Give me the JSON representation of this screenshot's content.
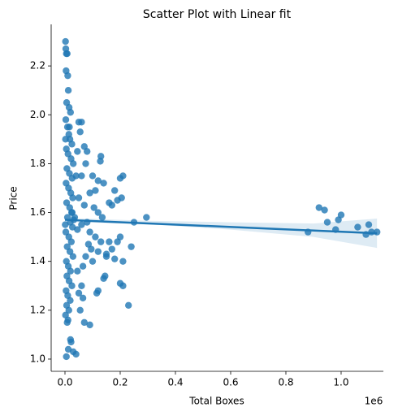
{
  "chart_data": {
    "type": "scatter",
    "title": "Scatter Plot with Linear fit",
    "xlabel": "Total Boxes",
    "ylabel": "Price",
    "x_offset_label": "1e6",
    "xlim": [
      -50000,
      1153000
    ],
    "ylim": [
      0.95,
      2.37
    ],
    "xticks": [
      {
        "value": 0,
        "label": "0.0"
      },
      {
        "value": 200000,
        "label": "0.2"
      },
      {
        "value": 400000,
        "label": "0.4"
      },
      {
        "value": 600000,
        "label": "0.6"
      },
      {
        "value": 800000,
        "label": "0.8"
      },
      {
        "value": 1000000,
        "label": "1.0"
      }
    ],
    "yticks": [
      {
        "value": 1.0,
        "label": "1.0"
      },
      {
        "value": 1.2,
        "label": "1.2"
      },
      {
        "value": 1.4,
        "label": "1.4"
      },
      {
        "value": 1.6,
        "label": "1.6"
      },
      {
        "value": 1.8,
        "label": "1.8"
      },
      {
        "value": 2.0,
        "label": "2.0"
      },
      {
        "value": 2.2,
        "label": "2.2"
      }
    ],
    "color": "#1f77b4",
    "x": [
      2000,
      3000,
      5000,
      8000,
      4000,
      10000,
      12000,
      6000,
      15000,
      20000,
      3000,
      9000,
      14000,
      18000,
      25000,
      5000,
      11000,
      22000,
      30000,
      7000,
      16000,
      26000,
      4000,
      13000,
      21000,
      28000,
      6000,
      17000,
      24000,
      9000,
      19000,
      27000,
      3000,
      14000,
      23000,
      8000,
      18000,
      29000,
      5000,
      12000,
      20000,
      7000,
      15000,
      25000,
      4000,
      10000,
      19000,
      6000,
      14000,
      2000,
      11000,
      8000,
      20000,
      22000,
      12000,
      30000,
      40000,
      5000,
      16000,
      2000,
      26000,
      1000,
      32000,
      35000,
      50000,
      60000,
      55000,
      45000,
      70000,
      80000,
      75000,
      130000,
      128000,
      40000,
      60000,
      100000,
      120000,
      140000,
      210000,
      200000,
      160000,
      170000,
      190000,
      205000,
      180000,
      110000,
      90000,
      50000,
      70000,
      105000,
      120000,
      135000,
      250000,
      295000,
      80000,
      60000,
      45000,
      90000,
      110000,
      130000,
      160000,
      190000,
      200000,
      240000,
      170000,
      150000,
      120000,
      100000,
      180000,
      210000,
      200000,
      210000,
      140000,
      145000,
      115000,
      120000,
      60000,
      50000,
      65000,
      55000,
      230000,
      70000,
      90000,
      150000,
      95000,
      85000,
      75000,
      65000,
      45000,
      880000,
      920000,
      940000,
      950000,
      980000,
      990000,
      1000000,
      1060000,
      1090000,
      1100000,
      1110000,
      1130000
    ],
    "y": [
      2.3,
      2.27,
      2.25,
      2.25,
      2.18,
      2.16,
      2.1,
      2.05,
      2.03,
      2.01,
      1.98,
      1.95,
      1.92,
      1.9,
      1.88,
      1.86,
      1.84,
      1.82,
      1.8,
      1.78,
      1.76,
      1.74,
      1.72,
      1.7,
      1.68,
      1.66,
      1.64,
      1.62,
      1.6,
      1.58,
      1.56,
      1.54,
      1.52,
      1.5,
      1.48,
      1.46,
      1.44,
      1.42,
      1.4,
      1.38,
      1.36,
      1.34,
      1.32,
      1.3,
      1.28,
      1.26,
      1.24,
      1.22,
      1.2,
      1.18,
      1.16,
      1.15,
      1.08,
      1.07,
      1.04,
      1.03,
      1.02,
      1.01,
      1.95,
      1.9,
      1.6,
      1.55,
      1.57,
      1.58,
      1.97,
      1.97,
      1.93,
      1.85,
      1.87,
      1.85,
      1.8,
      1.83,
      1.81,
      1.75,
      1.75,
      1.75,
      1.73,
      1.72,
      1.75,
      1.74,
      1.64,
      1.63,
      1.65,
      1.66,
      1.69,
      1.69,
      1.68,
      1.66,
      1.63,
      1.62,
      1.6,
      1.58,
      1.56,
      1.58,
      1.56,
      1.55,
      1.53,
      1.52,
      1.5,
      1.48,
      1.48,
      1.48,
      1.5,
      1.46,
      1.45,
      1.42,
      1.44,
      1.4,
      1.41,
      1.4,
      1.31,
      1.3,
      1.33,
      1.34,
      1.27,
      1.28,
      1.3,
      1.27,
      1.25,
      1.2,
      1.22,
      1.15,
      1.14,
      1.43,
      1.45,
      1.47,
      1.42,
      1.38,
      1.36,
      1.52,
      1.62,
      1.61,
      1.56,
      1.53,
      1.57,
      1.59,
      1.54,
      1.51,
      1.55,
      1.52,
      1.52
    ],
    "fit": {
      "x": [
        0,
        1130000
      ],
      "y": [
        1.57,
        1.515
      ]
    },
    "ci": {
      "x": [
        0,
        300000,
        600000,
        900000,
        1130000
      ],
      "lower": [
        1.562,
        1.552,
        1.53,
        1.5,
        1.455
      ],
      "upper": [
        1.578,
        1.566,
        1.56,
        1.555,
        1.575
      ]
    }
  }
}
